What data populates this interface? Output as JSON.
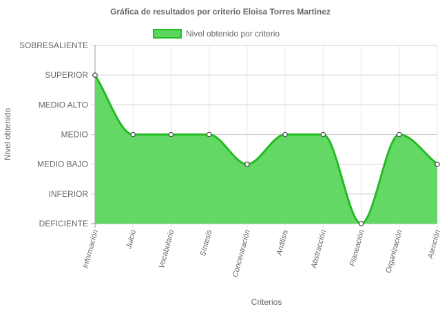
{
  "chart_data": {
    "type": "area",
    "title": "Gráfica de resultados por criterio Eloisa Torres Martinez",
    "xlabel": "Criterios",
    "ylabel": "Nivel obtenido",
    "categories": [
      "Información",
      "Juicio",
      "Vocabulario",
      "Síntesis",
      "Concentración",
      "Análisis",
      "Abstracción",
      "Planeación",
      "Organización",
      "Atención"
    ],
    "y_levels": [
      "DEFICIENTE",
      "INFERIOR",
      "MEDIO BAJO",
      "MEDIO",
      "MEDIO ALTO",
      "SUPERIOR",
      "SOBRESALIENTE"
    ],
    "series": [
      {
        "name": "Nivel obtenido por criterio",
        "values": [
          5,
          3,
          3,
          3,
          2,
          3,
          3,
          0,
          3,
          2
        ]
      }
    ],
    "ylim": [
      0,
      6
    ],
    "grid": true,
    "legend_position": "top",
    "colors": {
      "fill": "#5cd65c",
      "line": "#22bb22",
      "grid": "#e5e5e5",
      "axis": "#999999",
      "point_fill": "#ffffff",
      "point_stroke": "#444444"
    }
  }
}
